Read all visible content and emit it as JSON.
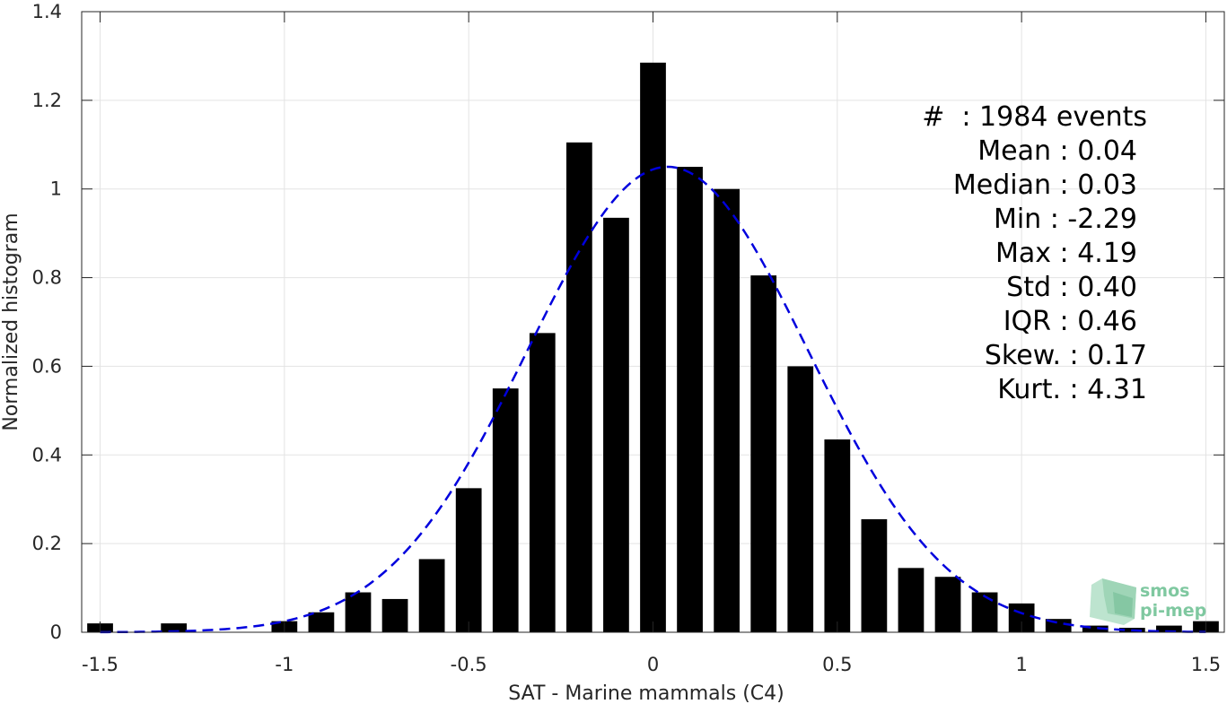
{
  "chart_data": {
    "type": "bar",
    "xlabel": "SAT - Marine mammals (C4)",
    "ylabel": "Normalized histogram",
    "xlim": [
      -1.55,
      1.55
    ],
    "ylim": [
      0,
      1.4
    ],
    "xticks": [
      -1.5,
      -1,
      -0.5,
      0,
      0.5,
      1,
      1.5
    ],
    "xtick_labels": [
      "-1.5",
      "-1",
      "-0.5",
      "0",
      "0.5",
      "1",
      "1.5"
    ],
    "yticks": [
      0,
      0.2,
      0.4,
      0.6,
      0.8,
      1,
      1.2,
      1.4
    ],
    "ytick_labels": [
      "0",
      "0.2",
      "0.4",
      "0.6",
      "0.8",
      "1",
      "1.2",
      "1.4"
    ],
    "grid": true,
    "bar_width": 0.07,
    "bars": [
      {
        "x": -1.5,
        "y": 0.02
      },
      {
        "x": -1.3,
        "y": 0.02
      },
      {
        "x": -1.0,
        "y": 0.025
      },
      {
        "x": -0.9,
        "y": 0.045
      },
      {
        "x": -0.8,
        "y": 0.09
      },
      {
        "x": -0.7,
        "y": 0.075
      },
      {
        "x": -0.6,
        "y": 0.165
      },
      {
        "x": -0.5,
        "y": 0.325
      },
      {
        "x": -0.4,
        "y": 0.55
      },
      {
        "x": -0.3,
        "y": 0.675
      },
      {
        "x": -0.2,
        "y": 1.105
      },
      {
        "x": -0.1,
        "y": 0.935
      },
      {
        "x": 0.0,
        "y": 1.285
      },
      {
        "x": 0.1,
        "y": 1.05
      },
      {
        "x": 0.2,
        "y": 1.0
      },
      {
        "x": 0.3,
        "y": 0.805
      },
      {
        "x": 0.4,
        "y": 0.6
      },
      {
        "x": 0.5,
        "y": 0.435
      },
      {
        "x": 0.6,
        "y": 0.255
      },
      {
        "x": 0.7,
        "y": 0.145
      },
      {
        "x": 0.8,
        "y": 0.125
      },
      {
        "x": 0.9,
        "y": 0.09
      },
      {
        "x": 1.0,
        "y": 0.065
      },
      {
        "x": 1.1,
        "y": 0.03
      },
      {
        "x": 1.2,
        "y": 0.015
      },
      {
        "x": 1.3,
        "y": 0.01
      },
      {
        "x": 1.4,
        "y": 0.015
      },
      {
        "x": 1.5,
        "y": 0.025
      }
    ],
    "fit": {
      "style": "dashed",
      "color": "#0000dd",
      "mean": 0.04,
      "std": 0.38,
      "peak": 1.05,
      "x_range": [
        -1.5,
        1.5
      ]
    },
    "stats": [
      {
        "label": "#  : 1984 events"
      },
      {
        "label": "Mean : 0.04"
      },
      {
        "label": "Median : 0.03"
      },
      {
        "label": "Min : -2.29"
      },
      {
        "label": "Max : 4.19"
      },
      {
        "label": "Std : 0.40"
      },
      {
        "label": "IQR : 0.46"
      },
      {
        "label": "Skew. : 0.17"
      },
      {
        "label": "Kurt. : 4.31"
      }
    ],
    "bar_color": "#000000"
  },
  "logo": {
    "line1": "smos",
    "line2": "pi-mep",
    "color": "#7fc8a0"
  }
}
